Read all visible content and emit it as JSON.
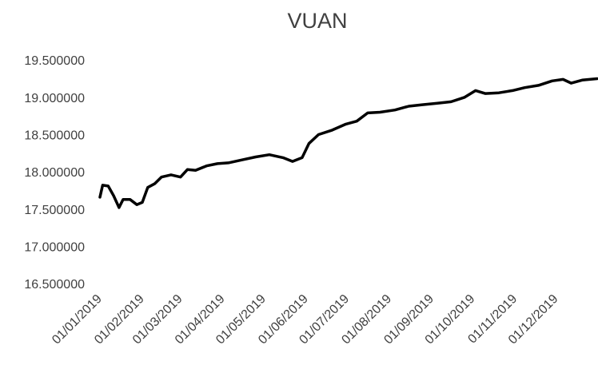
{
  "chart_data": {
    "type": "line",
    "title": "VUAN",
    "x": [
      "2019-01-01",
      "2019-01-03",
      "2019-01-07",
      "2019-01-11",
      "2019-01-15",
      "2019-01-18",
      "2019-01-23",
      "2019-01-28",
      "2019-02-01",
      "2019-02-05",
      "2019-02-10",
      "2019-02-15",
      "2019-02-22",
      "2019-03-01",
      "2019-03-06",
      "2019-03-12",
      "2019-03-20",
      "2019-03-28",
      "2019-04-05",
      "2019-04-15",
      "2019-04-25",
      "2019-05-05",
      "2019-05-15",
      "2019-05-22",
      "2019-05-29",
      "2019-06-03",
      "2019-06-10",
      "2019-06-20",
      "2019-06-30",
      "2019-07-08",
      "2019-07-16",
      "2019-07-25",
      "2019-08-05",
      "2019-08-15",
      "2019-08-25",
      "2019-09-05",
      "2019-09-15",
      "2019-09-25",
      "2019-10-03",
      "2019-10-10",
      "2019-10-20",
      "2019-10-30",
      "2019-11-08",
      "2019-11-18",
      "2019-11-28",
      "2019-12-06",
      "2019-12-12",
      "2019-12-20",
      "2019-12-31"
    ],
    "series": [
      {
        "name": "VUAN",
        "color": "#000000",
        "values": [
          17.68,
          17.84,
          17.83,
          17.7,
          17.54,
          17.65,
          17.65,
          17.58,
          17.61,
          17.81,
          17.86,
          17.95,
          17.98,
          17.95,
          18.05,
          18.04,
          18.1,
          18.13,
          18.14,
          18.18,
          18.22,
          18.25,
          18.21,
          18.16,
          18.21,
          18.4,
          18.52,
          18.58,
          18.66,
          18.7,
          18.81,
          18.82,
          18.85,
          18.9,
          18.92,
          18.94,
          18.96,
          19.02,
          19.11,
          19.07,
          19.08,
          19.11,
          19.15,
          19.18,
          19.24,
          19.26,
          19.21,
          19.25,
          19.27
        ]
      }
    ],
    "xlim": [
      "2019-01-01",
      "2019-12-31"
    ],
    "xticks": [
      {
        "value": "2019-01-01",
        "label": "01/01/2019"
      },
      {
        "value": "2019-02-01",
        "label": "01/02/2019"
      },
      {
        "value": "2019-03-01",
        "label": "01/03/2019"
      },
      {
        "value": "2019-04-01",
        "label": "01/04/2019"
      },
      {
        "value": "2019-05-01",
        "label": "01/05/2019"
      },
      {
        "value": "2019-06-01",
        "label": "01/06/2019"
      },
      {
        "value": "2019-07-01",
        "label": "01/07/2019"
      },
      {
        "value": "2019-08-01",
        "label": "01/08/2019"
      },
      {
        "value": "2019-09-01",
        "label": "01/09/2019"
      },
      {
        "value": "2019-10-01",
        "label": "01/10/2019"
      },
      {
        "value": "2019-11-01",
        "label": "01/11/2019"
      },
      {
        "value": "2019-12-01",
        "label": "01/12/2019"
      }
    ],
    "ylim": [
      16.5,
      19.5
    ],
    "yticks": [
      {
        "value": 16.5,
        "label": "16.500000"
      },
      {
        "value": 17,
        "label": "17.000000"
      },
      {
        "value": 17.5,
        "label": "17.500000"
      },
      {
        "value": 18,
        "label": "18.000000"
      },
      {
        "value": 18.5,
        "label": "18.500000"
      },
      {
        "value": 19,
        "label": "19.000000"
      },
      {
        "value": 19.5,
        "label": "19.500000"
      }
    ],
    "grid": false
  }
}
